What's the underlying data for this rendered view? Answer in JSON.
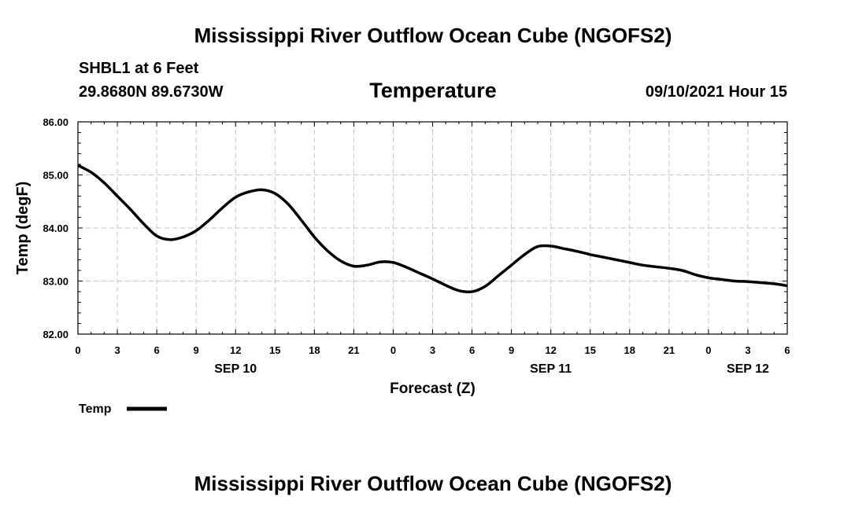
{
  "header": {
    "title": "Mississippi River Outflow Ocean Cube (NGOFS2)",
    "station": "SHBL1 at 6 Feet",
    "coords": "29.8680N  89.6730W",
    "variable": "Temperature",
    "forecast_time": "09/10/2021 Hour 15"
  },
  "footer": {
    "title": "Mississippi River Outflow Ocean Cube (NGOFS2)"
  },
  "chart_data": {
    "type": "line",
    "title": "Temperature",
    "xlabel": "Forecast (Z)",
    "ylabel": "Temp (degF)",
    "ylim": [
      82.0,
      86.0
    ],
    "yticks": [
      "82.00",
      "83.00",
      "84.00",
      "85.00",
      "86.00"
    ],
    "xlim": [
      0,
      54
    ],
    "xtick_labels": [
      "0",
      "3",
      "6",
      "9",
      "12",
      "15",
      "18",
      "21",
      "0",
      "3",
      "6",
      "9",
      "12",
      "15",
      "18",
      "21",
      "0",
      "3",
      "6"
    ],
    "date_labels": [
      {
        "label": "SEP 10",
        "hour": 12
      },
      {
        "label": "SEP 11",
        "hour": 36
      },
      {
        "label": "SEP 12",
        "hour": 51
      }
    ],
    "grid": true,
    "legend": {
      "position": "bottom-left",
      "entries": [
        "Temp"
      ]
    },
    "series": [
      {
        "name": "Temp",
        "x": [
          0,
          1,
          2,
          3,
          4,
          5,
          6,
          7,
          8,
          9,
          10,
          11,
          12,
          13,
          14,
          15,
          16,
          17,
          18,
          19,
          20,
          21,
          22,
          23,
          24,
          25,
          26,
          27,
          28,
          29,
          30,
          31,
          32,
          33,
          34,
          35,
          36,
          37,
          38,
          39,
          40,
          41,
          42,
          43,
          44,
          45,
          46,
          47,
          48,
          49,
          50,
          51,
          52,
          53,
          54
        ],
        "values": [
          85.18,
          85.05,
          84.85,
          84.6,
          84.35,
          84.08,
          83.85,
          83.78,
          83.83,
          83.95,
          84.15,
          84.38,
          84.58,
          84.68,
          84.72,
          84.65,
          84.45,
          84.15,
          83.83,
          83.57,
          83.38,
          83.28,
          83.3,
          83.36,
          83.35,
          83.26,
          83.15,
          83.04,
          82.92,
          82.82,
          82.8,
          82.9,
          83.1,
          83.3,
          83.5,
          83.65,
          83.66,
          83.61,
          83.56,
          83.5,
          83.45,
          83.4,
          83.35,
          83.3,
          83.27,
          83.24,
          83.2,
          83.12,
          83.06,
          83.03,
          83.0,
          82.99,
          82.97,
          82.95,
          82.91
        ]
      }
    ]
  }
}
